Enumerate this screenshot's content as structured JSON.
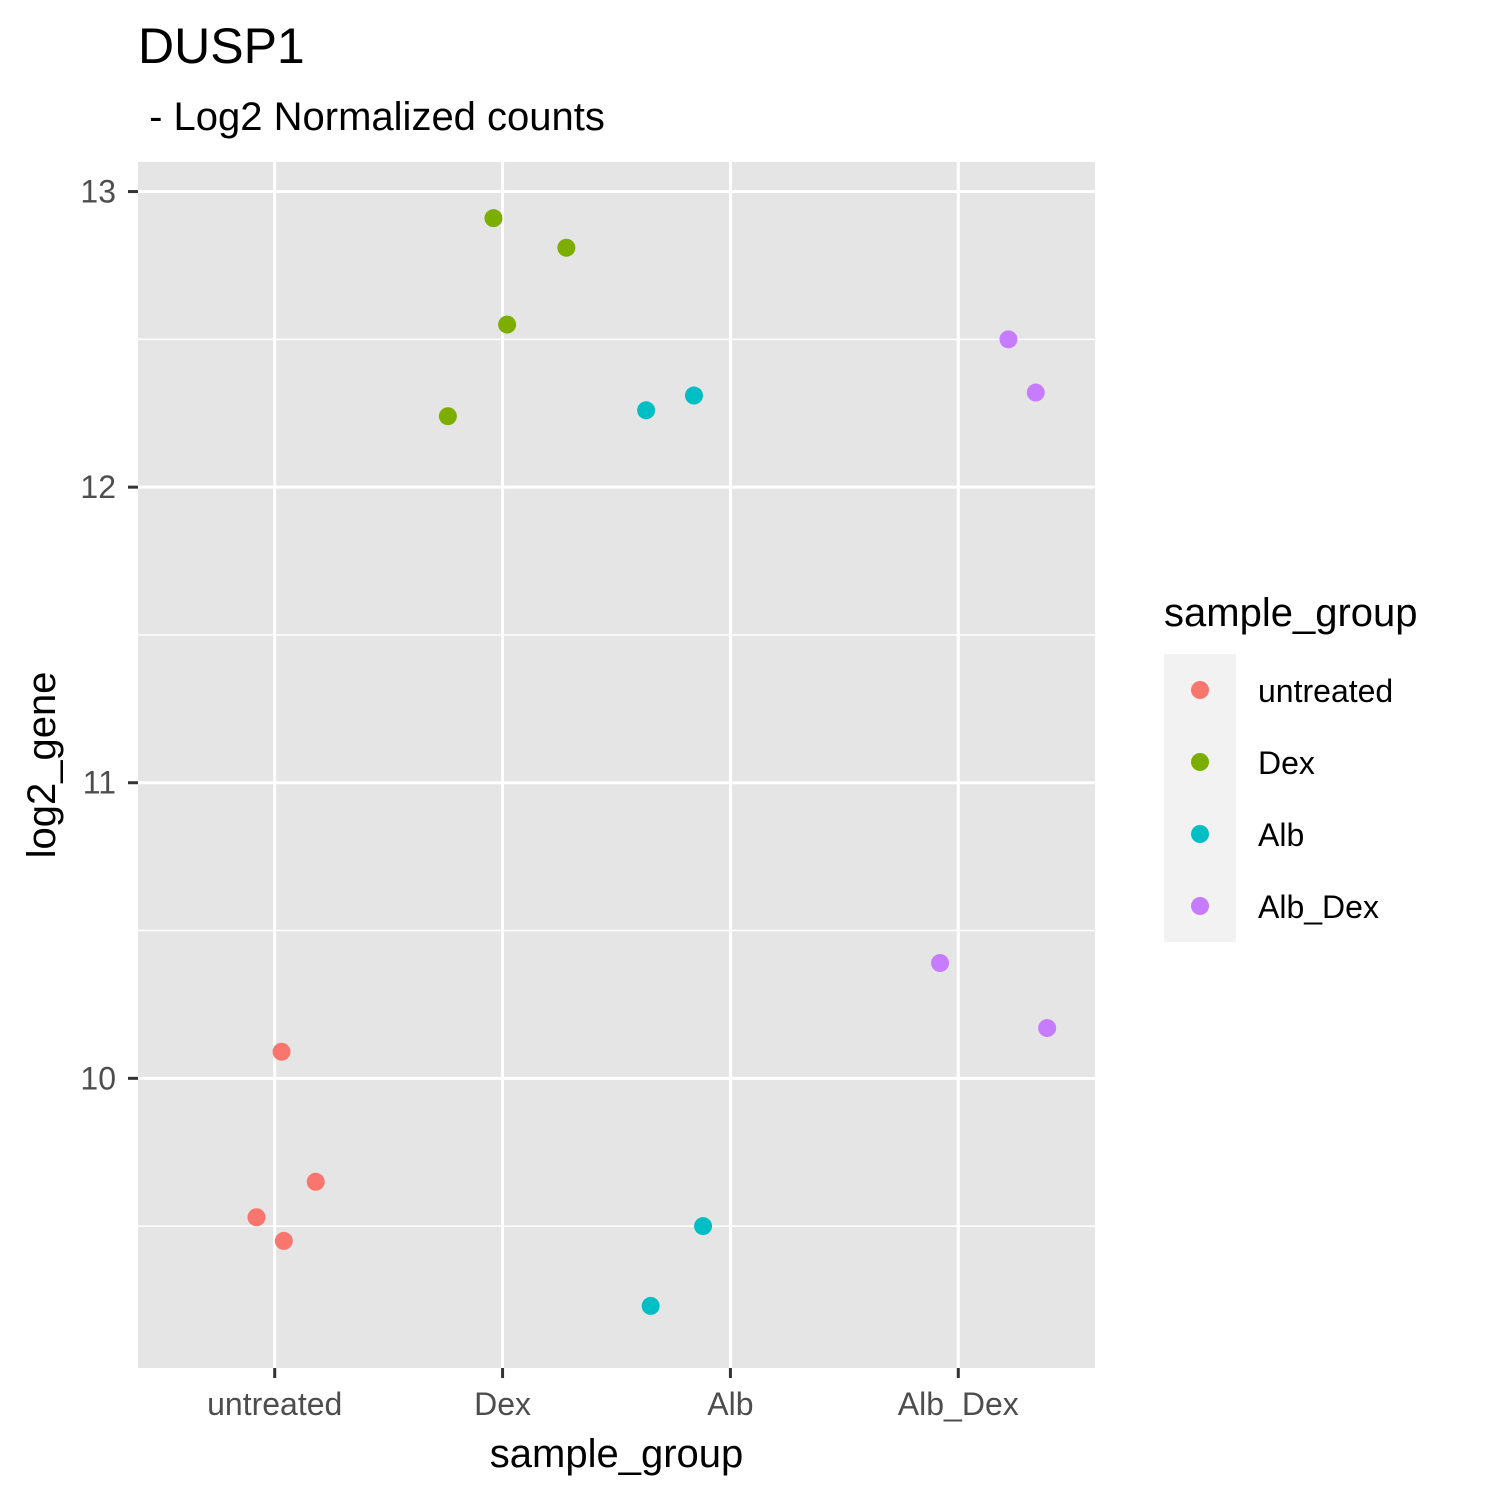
{
  "chart_data": {
    "type": "scatter",
    "title": "DUSP1",
    "subtitle": " - Log2 Normalized counts",
    "xlabel": "sample_group",
    "ylabel": "log2_gene",
    "categories": [
      "untreated",
      "Dex",
      "Alb",
      "Alb_Dex"
    ],
    "ylim": [
      9.02,
      13.1
    ],
    "yticks": [
      10,
      11,
      12,
      13
    ],
    "panel_background": "#e5e5e5",
    "grid": true,
    "legend": {
      "title": "sample_group",
      "position": "right"
    },
    "series": [
      {
        "name": "untreated",
        "color": "#f8766d",
        "points": [
          {
            "x": "untreated",
            "jitter": 0.03,
            "y": 10.09
          },
          {
            "x": "untreated",
            "jitter": 0.18,
            "y": 9.65
          },
          {
            "x": "untreated",
            "jitter": -0.08,
            "y": 9.53
          },
          {
            "x": "untreated",
            "jitter": 0.04,
            "y": 9.45
          }
        ]
      },
      {
        "name": "Dex",
        "color": "#7cae00",
        "points": [
          {
            "x": "Dex",
            "jitter": -0.04,
            "y": 12.91
          },
          {
            "x": "Dex",
            "jitter": 0.28,
            "y": 12.81
          },
          {
            "x": "Dex",
            "jitter": 0.02,
            "y": 12.55
          },
          {
            "x": "Dex",
            "jitter": -0.24,
            "y": 12.24
          }
        ]
      },
      {
        "name": "Alb",
        "color": "#00bfc4",
        "points": [
          {
            "x": "Alb",
            "jitter": -0.37,
            "y": 12.26
          },
          {
            "x": "Alb",
            "jitter": -0.16,
            "y": 12.31
          },
          {
            "x": "Alb",
            "jitter": -0.12,
            "y": 9.5
          },
          {
            "x": "Alb",
            "jitter": -0.35,
            "y": 9.23
          }
        ]
      },
      {
        "name": "Alb_Dex",
        "color": "#c77cff",
        "points": [
          {
            "x": "Alb_Dex",
            "jitter": 0.22,
            "y": 12.5
          },
          {
            "x": "Alb_Dex",
            "jitter": 0.34,
            "y": 12.32
          },
          {
            "x": "Alb_Dex",
            "jitter": -0.08,
            "y": 10.39
          },
          {
            "x": "Alb_Dex",
            "jitter": 0.39,
            "y": 10.17
          }
        ]
      }
    ]
  }
}
